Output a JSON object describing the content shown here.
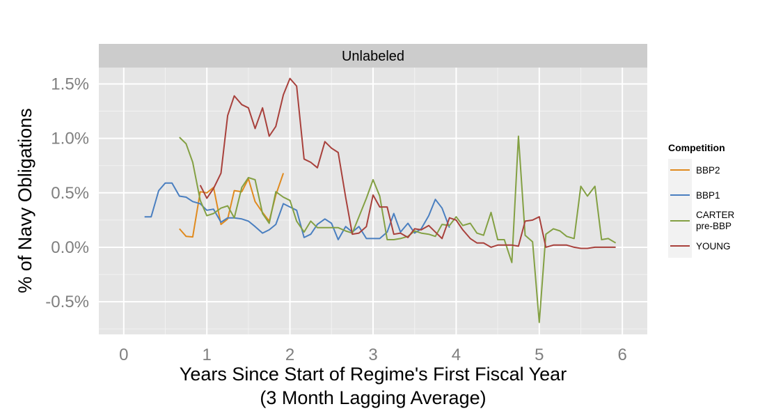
{
  "chart_data": {
    "type": "line",
    "panel_title": "Unlabeled",
    "xlabel_line1": "Years Since Start of Regime's First Fiscal Year",
    "xlabel_line2": "(3 Month Lagging Average)",
    "ylabel": "% of Navy Obligations",
    "xlim": [
      -0.3,
      6.3
    ],
    "ylim": [
      -0.8,
      1.65
    ],
    "x_ticks": [
      0,
      1,
      2,
      3,
      4,
      5,
      6
    ],
    "x_tick_labels": [
      "0",
      "1",
      "2",
      "3",
      "4",
      "5",
      "6"
    ],
    "y_ticks": [
      -0.5,
      0.0,
      0.5,
      1.0,
      1.5
    ],
    "y_tick_labels": [
      "-0.5%",
      "0.0%",
      "0.5%",
      "1.0%",
      "1.5%"
    ],
    "grid": true,
    "legend": {
      "title": "Competition",
      "placement": "right"
    },
    "series": [
      {
        "name": "BBP2",
        "color": "#E08A1E",
        "x": [
          0.67,
          0.75,
          0.83,
          0.92,
          1.0,
          1.08,
          1.17,
          1.25,
          1.33,
          1.42,
          1.5,
          1.58,
          1.67,
          1.75,
          1.83,
          1.92
        ],
        "y": [
          0.17,
          0.1,
          0.095,
          0.51,
          0.5,
          0.55,
          0.21,
          0.26,
          0.52,
          0.51,
          0.63,
          0.42,
          0.32,
          0.24,
          0.48,
          0.68
        ]
      },
      {
        "name": "BBP1",
        "color": "#4A7FC0",
        "x": [
          0.25,
          0.33,
          0.42,
          0.5,
          0.58,
          0.67,
          0.75,
          0.83,
          0.92,
          1.0,
          1.08,
          1.17,
          1.25,
          1.33,
          1.42,
          1.5,
          1.58,
          1.67,
          1.75,
          1.83,
          1.92,
          2.0,
          2.08,
          2.17,
          2.25,
          2.33,
          2.42,
          2.5,
          2.58,
          2.67,
          2.75,
          2.83,
          2.92,
          3.0,
          3.08,
          3.17,
          3.25,
          3.33,
          3.42,
          3.5,
          3.58,
          3.67,
          3.75,
          3.83,
          3.92
        ],
        "y": [
          0.28,
          0.28,
          0.52,
          0.59,
          0.59,
          0.47,
          0.46,
          0.42,
          0.4,
          0.34,
          0.35,
          0.23,
          0.27,
          0.27,
          0.26,
          0.24,
          0.19,
          0.13,
          0.16,
          0.21,
          0.4,
          0.37,
          0.34,
          0.09,
          0.12,
          0.21,
          0.26,
          0.22,
          0.07,
          0.19,
          0.14,
          0.19,
          0.08,
          0.08,
          0.08,
          0.14,
          0.31,
          0.14,
          0.22,
          0.13,
          0.17,
          0.29,
          0.44,
          0.36,
          0.18
        ]
      },
      {
        "name": "CARTER pre-BBP",
        "label_line1": "CARTER",
        "label_line2": "pre-BBP",
        "color": "#83A043",
        "x": [
          0.67,
          0.75,
          0.83,
          0.92,
          1.0,
          1.08,
          1.17,
          1.25,
          1.33,
          1.42,
          1.5,
          1.58,
          1.67,
          1.75,
          1.83,
          1.92,
          2.0,
          2.08,
          2.17,
          2.25,
          2.33,
          2.42,
          2.5,
          2.58,
          2.67,
          2.75,
          2.83,
          2.92,
          3.0,
          3.08,
          3.17,
          3.25,
          3.33,
          3.42,
          3.5,
          3.58,
          3.67,
          3.75,
          3.83,
          3.92,
          4.0,
          4.08,
          4.17,
          4.25,
          4.33,
          4.42,
          4.5,
          4.58,
          4.67,
          4.75,
          4.83,
          4.92,
          5.0,
          5.08,
          5.17,
          5.25,
          5.33,
          5.42,
          5.5,
          5.58,
          5.67,
          5.75,
          5.83,
          5.92
        ],
        "y": [
          1.01,
          0.95,
          0.78,
          0.43,
          0.29,
          0.31,
          0.36,
          0.38,
          0.27,
          0.55,
          0.64,
          0.62,
          0.31,
          0.22,
          0.51,
          0.46,
          0.43,
          0.24,
          0.14,
          0.24,
          0.18,
          0.18,
          0.18,
          0.18,
          0.15,
          0.13,
          0.28,
          0.45,
          0.62,
          0.47,
          0.07,
          0.07,
          0.08,
          0.1,
          0.15,
          0.13,
          0.12,
          0.1,
          0.21,
          0.2,
          0.28,
          0.2,
          0.22,
          0.13,
          0.11,
          0.32,
          0.07,
          0.07,
          -0.14,
          1.02,
          0.11,
          0.05,
          -0.69,
          0.12,
          0.17,
          0.15,
          0.1,
          0.08,
          0.56,
          0.47,
          0.56,
          0.07,
          0.08,
          0.04
        ]
      },
      {
        "name": "YOUNG",
        "color": "#A8403B",
        "x": [
          0.92,
          1.0,
          1.08,
          1.17,
          1.25,
          1.33,
          1.42,
          1.5,
          1.58,
          1.67,
          1.75,
          1.83,
          1.92,
          2.0,
          2.08,
          2.17,
          2.25,
          2.33,
          2.42,
          2.5,
          2.58,
          2.67,
          2.75,
          2.83,
          2.92,
          3.0,
          3.08,
          3.17,
          3.25,
          3.33,
          3.42,
          3.5,
          3.58,
          3.67,
          3.75,
          3.83,
          3.92,
          4.0,
          4.08,
          4.17,
          4.25,
          4.33,
          4.42,
          4.5,
          4.58,
          4.67,
          4.75,
          4.83,
          4.92,
          5.0,
          5.08,
          5.17,
          5.25,
          5.33,
          5.42,
          5.5,
          5.58,
          5.67,
          5.75,
          5.83,
          5.92
        ],
        "y": [
          0.57,
          0.45,
          0.54,
          0.68,
          1.21,
          1.39,
          1.31,
          1.28,
          1.09,
          1.28,
          1.02,
          1.11,
          1.4,
          1.55,
          1.48,
          0.81,
          0.78,
          0.73,
          0.97,
          0.91,
          0.87,
          0.46,
          0.12,
          0.13,
          0.19,
          0.48,
          0.37,
          0.37,
          0.12,
          0.13,
          0.09,
          0.17,
          0.16,
          0.2,
          0.14,
          0.08,
          0.27,
          0.25,
          0.16,
          0.08,
          0.04,
          0.04,
          0.0,
          0.02,
          0.02,
          0.02,
          0.01,
          0.24,
          0.25,
          0.28,
          0.0,
          0.02,
          0.02,
          0.02,
          0.0,
          -0.01,
          -0.01,
          0.0,
          0.0,
          0.0,
          0.0
        ]
      }
    ]
  }
}
